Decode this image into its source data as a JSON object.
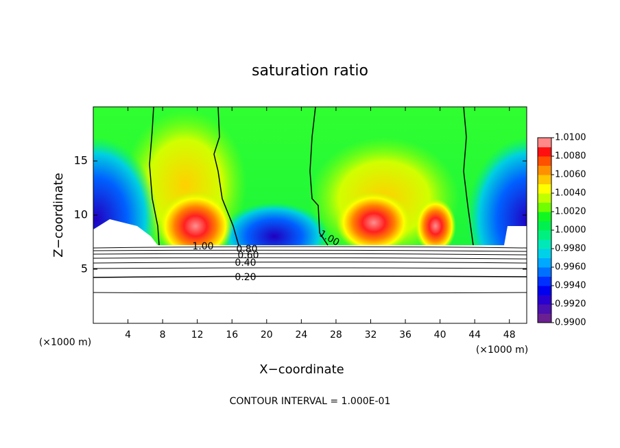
{
  "chart_data": {
    "type": "contour",
    "title": "saturation ratio",
    "x_label": "X−coordinate",
    "y_label": "Z−coordinate",
    "x_unit": "(×1000 m)",
    "footer": "CONTOUR INTERVAL = 1.000E-01",
    "xlim": [
      0,
      50
    ],
    "xticks": [
      4,
      8,
      12,
      16,
      20,
      24,
      28,
      32,
      36,
      40,
      44,
      48
    ],
    "ylim": [
      0,
      20
    ],
    "yticks": [
      5,
      10,
      15
    ],
    "colorbar": {
      "lim": [
        0.99,
        1.01
      ],
      "ticks": [
        {
          "value": 0.99,
          "label": "0.9900"
        },
        {
          "value": 0.992,
          "label": "0.9920"
        },
        {
          "value": 0.994,
          "label": "0.9940"
        },
        {
          "value": 0.996,
          "label": "0.9960"
        },
        {
          "value": 0.998,
          "label": "0.9980"
        },
        {
          "value": 1.0,
          "label": "1.0000"
        },
        {
          "value": 1.002,
          "label": "1.0020"
        },
        {
          "value": 1.004,
          "label": "1.0040"
        },
        {
          "value": 1.006,
          "label": "1.0060"
        },
        {
          "value": 1.008,
          "label": "1.0080"
        },
        {
          "value": 1.01,
          "label": "1.0100"
        }
      ],
      "colors": [
        "#6a2090",
        "#4a10b0",
        "#2800d0",
        "#0000f0",
        "#0030ff",
        "#0070ff",
        "#00a8ff",
        "#00d0e8",
        "#00e8b8",
        "#00f080",
        "#00f050",
        "#10f820",
        "#70ff00",
        "#c0ff00",
        "#ffff00",
        "#ffc800",
        "#ff9000",
        "#ff5000",
        "#ff1010",
        "#ff8888"
      ]
    },
    "contour_labels": [
      {
        "value": 1.0,
        "label": "1.00"
      },
      {
        "value": 1.0,
        "label": "1.00"
      },
      {
        "value": 0.8,
        "label": "0.80"
      },
      {
        "value": 0.6,
        "label": "0.60"
      },
      {
        "value": 0.4,
        "label": "0.40"
      },
      {
        "value": 0.2,
        "label": "0.20"
      }
    ]
  }
}
